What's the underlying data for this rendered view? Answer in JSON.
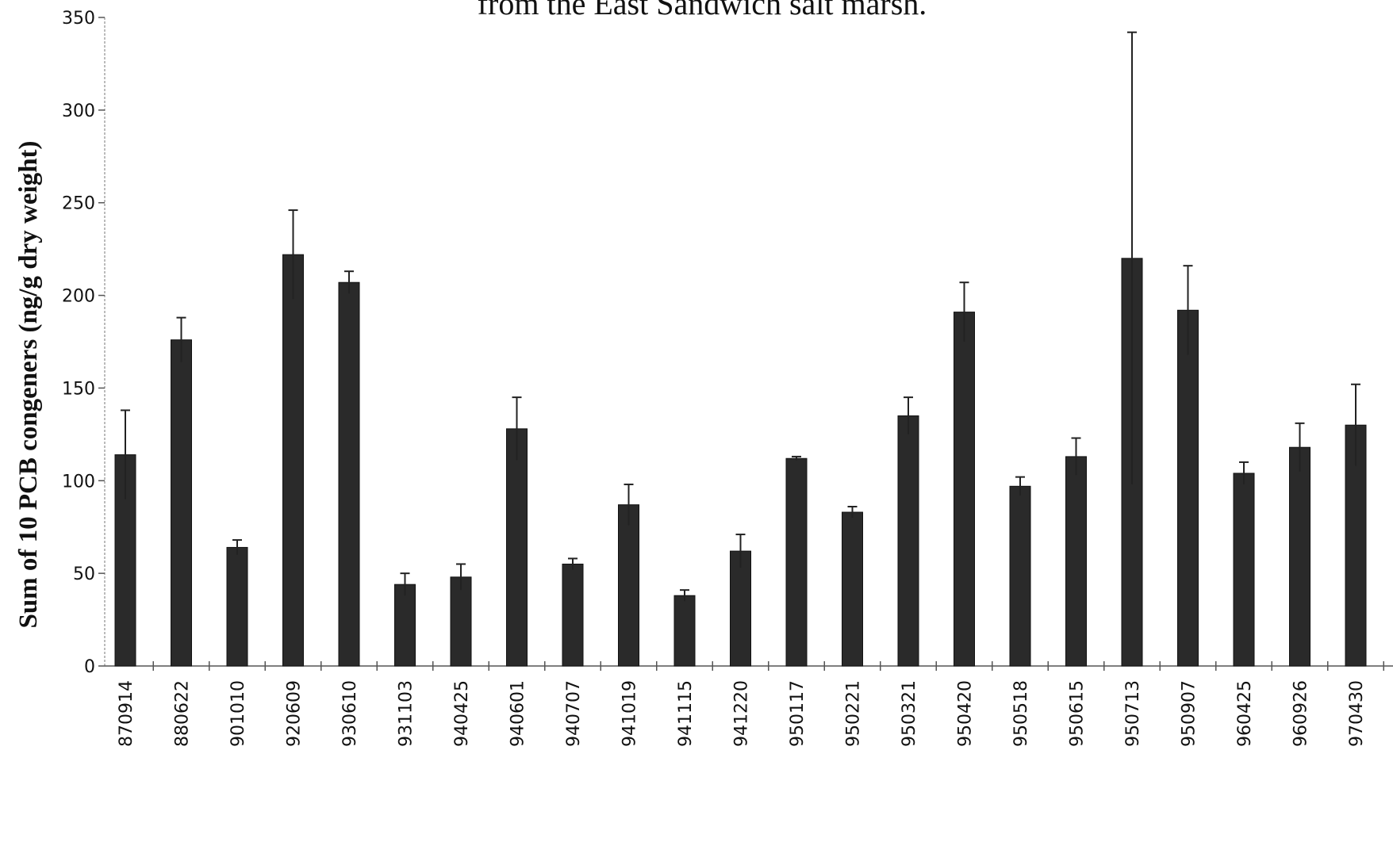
{
  "chart_data": {
    "type": "bar",
    "title": "from the East Sandwich salt marsh.",
    "xlabel": "",
    "ylabel": "Sum of 10 PCB congeners (ng/g dry weight)",
    "ylim": [
      0,
      350
    ],
    "yticks": [
      0,
      50,
      100,
      150,
      200,
      250,
      300,
      350
    ],
    "categories": [
      "870914",
      "880622",
      "901010",
      "920609",
      "930610",
      "931103",
      "940425",
      "940601",
      "940707",
      "941019",
      "941115",
      "941220",
      "950117",
      "950221",
      "950321",
      "950420",
      "950518",
      "950615",
      "950713",
      "950907",
      "960425",
      "960926",
      "970430"
    ],
    "values": [
      114,
      176,
      64,
      222,
      207,
      44,
      48,
      128,
      55,
      87,
      38,
      62,
      112,
      83,
      135,
      191,
      97,
      113,
      220,
      192,
      104,
      118,
      130
    ],
    "errors": [
      24,
      12,
      4,
      24,
      6,
      6,
      7,
      17,
      3,
      11,
      3,
      9,
      1,
      3,
      10,
      16,
      5,
      10,
      122,
      24,
      6,
      13,
      22
    ],
    "grid": false,
    "legend": "none",
    "colors": {
      "bar": "#2a2a2a",
      "axis": "#555555",
      "text": "#111111"
    }
  }
}
